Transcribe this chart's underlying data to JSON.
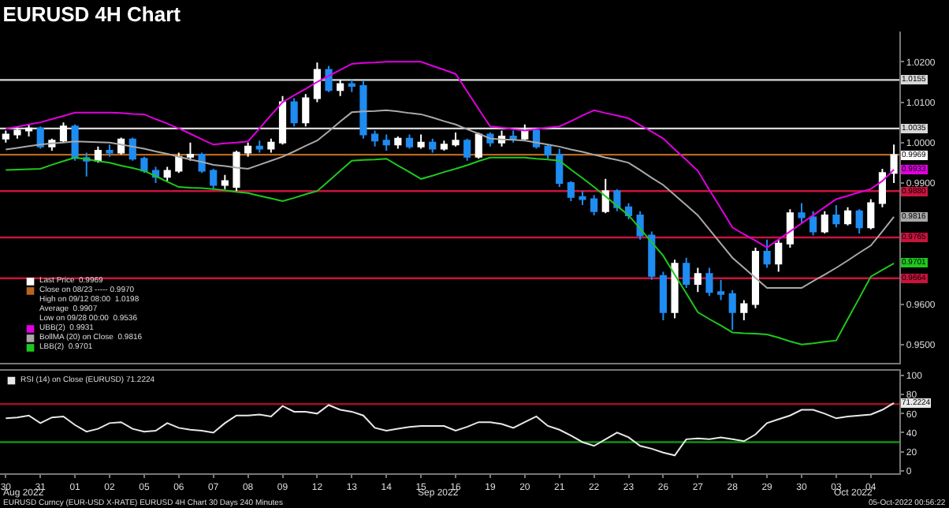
{
  "chart_data": [
    {
      "type": "candlestick",
      "title": "EURUSD 4H Chart",
      "tick_labels": "y",
      "legend": "bottom left",
      "grid": false,
      "categories": [
        "30",
        null,
        null,
        "31",
        null,
        null,
        "01",
        null,
        null,
        "02",
        null,
        null,
        "05",
        null,
        null,
        "06",
        null,
        null,
        "07",
        null,
        null,
        "08",
        null,
        null,
        "09",
        null,
        null,
        "12",
        null,
        null,
        "13",
        null,
        null,
        "14",
        null,
        null,
        "15",
        null,
        null,
        "16",
        null,
        null,
        "19",
        null,
        null,
        "20",
        null,
        null,
        "21",
        null,
        null,
        "22",
        null,
        null,
        "23",
        null,
        null,
        "26",
        null,
        null,
        "27",
        null,
        null,
        "28",
        null,
        null,
        "29",
        null,
        null,
        "30",
        null,
        null,
        "03",
        null,
        null,
        "04",
        null,
        null
      ],
      "colors": [
        "#ffffff",
        "#ffffff",
        "#ffffff",
        "#1e8cf0",
        "#ffffff",
        "#ffffff",
        "#1e8cf0",
        "#1e8cf0",
        "#ffffff",
        "#1e8cf0",
        "#ffffff",
        "#1e8cf0",
        "#1e8cf0",
        "#1e8cf0",
        "#ffffff",
        "#ffffff",
        "#ffffff",
        "#1e8cf0",
        "#1e8cf0",
        "#ffffff",
        "#ffffff",
        "#ffffff",
        "#1e8cf0",
        "#ffffff",
        "#ffffff",
        "#1e8cf0",
        "#ffffff",
        "#ffffff",
        "#1e8cf0",
        "#ffffff",
        "#1e8cf0",
        "#1e8cf0",
        "#1e8cf0",
        "#1e8cf0",
        "#ffffff",
        "#1e8cf0",
        "#ffffff",
        "#1e8cf0",
        "#ffffff",
        "#ffffff",
        "#1e8cf0",
        "#ffffff",
        "#1e8cf0",
        "#ffffff",
        "#1e8cf0",
        "#ffffff",
        "#1e8cf0",
        "#1e8cf0",
        "#1e8cf0",
        "#1e8cf0",
        "#1e8cf0",
        "#1e8cf0",
        "#ffffff",
        "#1e8cf0",
        "#1e8cf0",
        "#1e8cf0",
        "#1e8cf0",
        "#1e8cf0",
        "#ffffff",
        "#1e8cf0",
        "#ffffff",
        "#1e8cf0",
        "#1e8cf0",
        "#1e8cf0",
        "#ffffff",
        "#ffffff",
        "#1e8cf0",
        "#ffffff",
        "#ffffff",
        "#1e8cf0",
        "#1e8cf0",
        "#ffffff",
        "#1e8cf0",
        "#ffffff",
        "#1e8cf0",
        "#ffffff",
        "#ffffff",
        "#ffffff"
      ],
      "ohlc": [
        [
          1.001,
          1.003,
          1.0,
          1.002
        ],
        [
          1.002,
          1.004,
          1.001,
          1.003
        ],
        [
          1.003,
          1.0045,
          1.0015,
          1.0035
        ],
        [
          1.0035,
          1.004,
          0.9985,
          0.999
        ],
        [
          0.999,
          1.001,
          0.998,
          1.0005
        ],
        [
          1.0005,
          1.005,
          1.0,
          1.004
        ],
        [
          1.004,
          1.0045,
          0.9955,
          0.9962
        ],
        [
          0.9962,
          0.9975,
          0.9916,
          0.9955
        ],
        [
          0.9955,
          0.999,
          0.995,
          0.998
        ],
        [
          0.998,
          0.9995,
          0.9965,
          0.9975
        ],
        [
          0.9975,
          1.0012,
          0.997,
          1.0008
        ],
        [
          1.0008,
          1.0012,
          0.9955,
          0.996
        ],
        [
          0.996,
          0.9965,
          0.9925,
          0.993
        ],
        [
          0.993,
          0.994,
          0.99,
          0.9915
        ],
        [
          0.9915,
          0.994,
          0.9905,
          0.993
        ],
        [
          0.993,
          0.9975,
          0.9925,
          0.9965
        ],
        [
          0.9965,
          1.0,
          0.9955,
          0.997
        ],
        [
          0.997,
          0.9975,
          0.9925,
          0.993
        ],
        [
          0.993,
          0.9935,
          0.9885,
          0.9895
        ],
        [
          0.9895,
          0.992,
          0.9885,
          0.9905
        ],
        [
          0.989,
          0.998,
          0.988,
          0.9975
        ],
        [
          0.9975,
          1.0,
          0.9965,
          0.999
        ],
        [
          0.999,
          1.0005,
          0.9975,
          0.9985
        ],
        [
          0.9985,
          1.001,
          0.9975,
          1.0
        ],
        [
          1.0,
          1.0115,
          0.9995,
          1.01
        ],
        [
          1.01,
          1.011,
          1.004,
          1.005
        ],
        [
          1.005,
          1.012,
          1.004,
          1.011
        ],
        [
          1.011,
          1.0198,
          1.01,
          1.018
        ],
        [
          1.018,
          1.019,
          1.0125,
          1.013
        ],
        [
          1.013,
          1.0155,
          1.0115,
          1.0145
        ],
        [
          1.0145,
          1.0155,
          1.0125,
          1.014
        ],
        [
          1.014,
          1.0153,
          1.001,
          1.002
        ],
        [
          1.002,
          1.003,
          0.999,
          1.0005
        ],
        [
          1.0005,
          1.002,
          0.998,
          0.9995
        ],
        [
          0.9995,
          1.0015,
          0.9985,
          1.001
        ],
        [
          1.001,
          1.002,
          0.9985,
          0.999
        ],
        [
          0.999,
          1.002,
          0.9985,
          1.0
        ],
        [
          1.0,
          1.001,
          0.9975,
          0.9985
        ],
        [
          0.9985,
          1.0005,
          0.998,
          0.9995
        ],
        [
          0.9995,
          1.0025,
          0.999,
          1.0005
        ],
        [
          1.0005,
          1.001,
          0.9955,
          0.9965
        ],
        [
          0.9965,
          1.0025,
          0.996,
          1.002
        ],
        [
          1.002,
          1.0025,
          0.999,
          1.0
        ],
        [
          1.0,
          1.003,
          0.999,
          1.0015
        ],
        [
          1.0015,
          1.003,
          1.0,
          1.001
        ],
        [
          1.001,
          1.0045,
          1.0005,
          1.003
        ],
        [
          1.003,
          1.0035,
          0.9985,
          0.999
        ],
        [
          0.999,
          0.9995,
          0.996,
          0.997
        ],
        [
          0.997,
          0.9985,
          0.989,
          0.99
        ],
        [
          0.99,
          0.9905,
          0.9855,
          0.9865
        ],
        [
          0.9865,
          0.988,
          0.9845,
          0.986
        ],
        [
          0.986,
          0.987,
          0.982,
          0.983
        ],
        [
          0.983,
          0.991,
          0.9825,
          0.988
        ],
        [
          0.988,
          0.9885,
          0.983,
          0.984
        ],
        [
          0.984,
          0.985,
          0.981,
          0.982
        ],
        [
          0.982,
          0.983,
          0.976,
          0.977
        ],
        [
          0.977,
          0.978,
          0.966,
          0.967
        ],
        [
          0.967,
          0.968,
          0.956,
          0.958
        ],
        [
          0.958,
          0.971,
          0.9565,
          0.97
        ],
        [
          0.97,
          0.9715,
          0.964,
          0.965
        ],
        [
          0.965,
          0.969,
          0.963,
          0.9675
        ],
        [
          0.9675,
          0.969,
          0.962,
          0.963
        ],
        [
          0.963,
          0.966,
          0.961,
          0.9625
        ],
        [
          0.9625,
          0.9635,
          0.9536,
          0.958
        ],
        [
          0.958,
          0.961,
          0.956,
          0.96
        ],
        [
          0.96,
          0.974,
          0.959,
          0.973
        ],
        [
          0.973,
          0.976,
          0.969,
          0.97
        ],
        [
          0.97,
          0.976,
          0.968,
          0.975
        ],
        [
          0.975,
          0.9835,
          0.974,
          0.9825
        ],
        [
          0.9825,
          0.985,
          0.98,
          0.9815
        ],
        [
          0.9815,
          0.983,
          0.977,
          0.978
        ],
        [
          0.978,
          0.983,
          0.9775,
          0.982
        ],
        [
          0.982,
          0.9845,
          0.979,
          0.98
        ],
        [
          0.98,
          0.984,
          0.9795,
          0.983
        ],
        [
          0.983,
          0.9835,
          0.9775,
          0.979
        ],
        [
          0.979,
          0.986,
          0.9785,
          0.985
        ],
        [
          0.985,
          0.9935,
          0.984,
          0.9925
        ],
        [
          0.9925,
          0.9995,
          0.99,
          0.9969
        ]
      ],
      "series": [
        {
          "name": "UBB(2)  0.9931",
          "type": "line",
          "color": "#e000e0",
          "values": [
            1.0034,
            1.0039,
            1.0045,
            1.005,
            1.0058,
            1.0066,
            1.0074,
            1.0074,
            1.0074,
            1.0074,
            1.0073,
            1.0071,
            1.007,
            1.0058,
            1.0047,
            1.0035,
            1.0022,
            1.0008,
            0.9995,
            0.9998,
            1.0,
            1.0003,
            1.0035,
            1.0068,
            1.01,
            1.0117,
            1.0133,
            1.015,
            1.0165,
            1.018,
            1.0195,
            1.0197,
            1.0198,
            1.02,
            1.02,
            1.02,
            1.02,
            1.019,
            1.018,
            1.017,
            1.0127,
            1.0083,
            1.004,
            1.0037,
            1.0033,
            1.003,
            1.0033,
            1.0037,
            1.004,
            1.0053,
            1.0067,
            1.008,
            1.0073,
            1.0067,
            1.006,
            1.0043,
            1.0027,
            1.001,
            0.9983,
            0.9957,
            0.993,
            0.9883,
            0.9837,
            0.979,
            0.9773,
            0.9757,
            0.974,
            0.976,
            0.978,
            0.98,
            0.982,
            0.984,
            0.986,
            0.9868,
            0.9877,
            0.9885,
            0.9905,
            0.9933
          ],
          "value_labels": [
            null,
            null,
            null,
            null,
            null,
            null,
            null,
            null,
            null,
            null,
            null,
            null,
            null,
            null,
            null,
            null,
            null,
            null,
            null,
            null,
            null,
            null,
            null,
            null,
            null,
            null,
            null,
            null,
            null,
            null,
            null,
            null,
            null,
            null,
            null,
            null,
            null,
            null,
            null,
            null,
            null,
            null,
            null,
            null,
            null,
            null,
            null,
            null,
            null,
            null,
            null,
            null,
            null,
            null,
            null,
            null,
            null,
            null,
            null,
            null,
            null,
            null,
            null,
            null,
            null,
            null,
            null,
            null,
            null,
            null,
            null,
            null,
            null,
            null,
            null,
            null,
            null,
            "0.9933"
          ]
        },
        {
          "name": "BollMA (20) on Close  0.9816",
          "type": "line",
          "color": "#a8a8a8",
          "values": [
            0.9983,
            0.9987,
            0.9991,
            0.9995,
            0.9998,
            1.0,
            1.0003,
            1.0002,
            1.0001,
            1.0,
            0.9995,
            0.999,
            0.9985,
            0.9978,
            0.9972,
            0.9965,
            0.9958,
            0.9952,
            0.9945,
            0.9942,
            0.9938,
            0.9935,
            0.9945,
            0.9955,
            0.9965,
            0.9978,
            0.9992,
            1.0005,
            1.0028,
            1.0052,
            1.0075,
            1.0077,
            1.0078,
            1.008,
            1.0077,
            1.0073,
            1.007,
            1.0062,
            1.0053,
            1.0045,
            1.0033,
            1.0022,
            1.001,
            1.0008,
            1.0007,
            1.0005,
            1.0,
            0.9995,
            0.999,
            0.9983,
            0.9977,
            0.997,
            0.9963,
            0.9957,
            0.995,
            0.9932,
            0.9913,
            0.9895,
            0.987,
            0.9845,
            0.982,
            0.9785,
            0.975,
            0.9715,
            0.969,
            0.9665,
            0.964,
            0.964,
            0.964,
            0.964,
            0.9657,
            0.9673,
            0.969,
            0.9708,
            0.9727,
            0.9745,
            0.978,
            0.9816
          ],
          "value_labels": [
            null,
            null,
            null,
            null,
            null,
            null,
            null,
            null,
            null,
            null,
            null,
            null,
            null,
            null,
            null,
            null,
            null,
            null,
            null,
            null,
            null,
            null,
            null,
            null,
            null,
            null,
            null,
            null,
            null,
            null,
            null,
            null,
            null,
            null,
            null,
            null,
            null,
            null,
            null,
            null,
            null,
            null,
            null,
            null,
            null,
            null,
            null,
            null,
            null,
            null,
            null,
            null,
            null,
            null,
            null,
            null,
            null,
            null,
            null,
            null,
            null,
            null,
            null,
            null,
            null,
            null,
            null,
            null,
            null,
            null,
            null,
            null,
            null,
            null,
            null,
            null,
            null,
            "0.9816"
          ]
        },
        {
          "name": "LBB(2)  0.9701",
          "type": "line",
          "color": "#1ec81e",
          "values": [
            0.9932,
            0.9933,
            0.9934,
            0.9935,
            0.9945,
            0.9954,
            0.9963,
            0.9959,
            0.9954,
            0.995,
            0.9943,
            0.9937,
            0.993,
            0.9917,
            0.9903,
            0.989,
            0.9888,
            0.9887,
            0.9885,
            0.9882,
            0.9878,
            0.9875,
            0.9868,
            0.9862,
            0.9855,
            0.9863,
            0.9872,
            0.988,
            0.9905,
            0.993,
            0.9955,
            0.9957,
            0.9958,
            0.996,
            0.9943,
            0.9927,
            0.991,
            0.9918,
            0.9927,
            0.9935,
            0.9944,
            0.9954,
            0.9963,
            0.9963,
            0.9963,
            0.9963,
            0.996,
            0.9958,
            0.9955,
            0.9933,
            0.9912,
            0.989,
            0.9867,
            0.9843,
            0.982,
            0.9787,
            0.9753,
            0.972,
            0.9673,
            0.9627,
            0.958,
            0.9563,
            0.9547,
            0.953,
            0.9528,
            0.9527,
            0.9525,
            0.9517,
            0.9508,
            0.95,
            0.9503,
            0.9507,
            0.951,
            0.9563,
            0.9615,
            0.9668,
            0.9685,
            0.9701
          ],
          "value_labels": [
            null,
            null,
            null,
            null,
            null,
            null,
            null,
            null,
            null,
            null,
            null,
            null,
            null,
            null,
            null,
            null,
            null,
            null,
            null,
            null,
            null,
            null,
            null,
            null,
            null,
            null,
            null,
            null,
            null,
            null,
            null,
            null,
            null,
            null,
            null,
            null,
            null,
            null,
            null,
            null,
            null,
            null,
            null,
            null,
            null,
            null,
            null,
            null,
            null,
            null,
            null,
            null,
            null,
            null,
            null,
            null,
            null,
            null,
            null,
            null,
            null,
            null,
            null,
            null,
            null,
            null,
            null,
            null,
            null,
            null,
            null,
            null,
            null,
            null,
            null,
            null,
            null,
            "0.9701"
          ]
        }
      ],
      "ref_lines": [
        {
          "axis": "y",
          "value": 1.0155,
          "label": "1.0155",
          "color": "#d8d8d8"
        },
        {
          "axis": "y",
          "value": 1.0035,
          "label": "1.0035",
          "color": "#d8d8d8"
        },
        {
          "axis": "y",
          "value": 0.997,
          "label": "Close on 08/23 ----- 0.9970",
          "color": "#b8661e"
        },
        {
          "axis": "y",
          "value": 0.988,
          "label": "0.9880",
          "color": "#c8143c"
        },
        {
          "axis": "y",
          "value": 0.9765,
          "label": "0.9765",
          "color": "#c8143c"
        },
        {
          "axis": "y",
          "value": 0.9664,
          "label": "0.9664",
          "color": "#c8143c"
        }
      ],
      "annotations": [
        "Last Price  0.9969",
        "High on 09/12 08:00  1.0198",
        "Average  0.9907",
        "Low on 09/28 00:00  0.9536",
        "0.9969"
      ],
      "ylim": [
        0.9455,
        1.0275
      ],
      "yticks": [
        {
          "value": 0.95,
          "label": "0.9500"
        },
        {
          "value": 0.96,
          "label": "0.9600"
        },
        {
          "value": 0.99,
          "label": "0.9900"
        },
        {
          "value": 1.0,
          "label": "1.0000"
        },
        {
          "value": 1.01,
          "label": "1.0100"
        },
        {
          "value": 1.02,
          "label": "1.0200"
        }
      ]
    },
    {
      "type": "line",
      "legend": "top left",
      "grid": false,
      "categories": [
        "30",
        null,
        null,
        "31",
        null,
        null,
        "01",
        null,
        null,
        "02",
        null,
        null,
        "05",
        null,
        null,
        "06",
        null,
        null,
        "07",
        null,
        null,
        "08",
        null,
        null,
        "09",
        null,
        null,
        "12",
        null,
        null,
        "13",
        null,
        null,
        "14",
        null,
        null,
        "15",
        null,
        null,
        "16",
        null,
        null,
        "19",
        null,
        null,
        "20",
        null,
        null,
        "21",
        null,
        null,
        "22",
        null,
        null,
        "23",
        null,
        null,
        "26",
        null,
        null,
        "27",
        null,
        null,
        "28",
        null,
        null,
        "29",
        null,
        null,
        "30",
        null,
        null,
        "03",
        null,
        null,
        "04",
        null,
        null
      ],
      "series": [
        {
          "name": "RSI (14) on Close (EURUSD) 71.2224",
          "color": "#e8e8e8",
          "values": [
            55,
            56,
            58,
            50,
            56,
            57,
            48,
            41,
            44,
            50,
            51,
            44,
            41,
            42,
            50,
            45,
            43,
            42,
            40,
            50,
            58,
            58,
            59,
            57,
            68,
            62,
            62,
            60,
            69,
            64,
            62,
            58,
            45,
            42,
            44,
            46,
            47,
            47,
            47,
            42,
            46,
            51,
            51,
            49,
            45,
            51,
            57,
            47,
            43,
            37,
            30,
            26,
            33,
            40,
            35,
            26,
            23,
            19,
            16,
            33,
            34,
            33,
            35,
            33,
            31,
            38,
            50,
            54,
            58,
            64,
            64,
            60,
            55,
            57,
            58,
            59,
            64,
            71.2224
          ],
          "value_labels": [
            null,
            null,
            null,
            null,
            null,
            null,
            null,
            null,
            null,
            null,
            null,
            null,
            null,
            null,
            null,
            null,
            null,
            null,
            null,
            null,
            null,
            null,
            null,
            null,
            null,
            null,
            null,
            null,
            null,
            null,
            null,
            null,
            null,
            null,
            null,
            null,
            null,
            null,
            null,
            null,
            null,
            null,
            null,
            null,
            null,
            null,
            null,
            null,
            null,
            null,
            null,
            null,
            null,
            null,
            null,
            null,
            null,
            null,
            null,
            null,
            null,
            null,
            null,
            null,
            null,
            null,
            null,
            null,
            null,
            null,
            null,
            null,
            null,
            null,
            null,
            null,
            null,
            "71.2224"
          ]
        }
      ],
      "ref_lines": [
        {
          "axis": "y",
          "value": 70,
          "color": "#a01020"
        },
        {
          "axis": "y",
          "value": 30,
          "color": "#109010"
        }
      ],
      "annotations": [
        "Aug 2022",
        "Sep 2022",
        "Oct 2022",
        "EURUSD Curncy (EUR-USD X-RATE) EURUSD 4H Chart 30 Days 240 Minutes",
        "05-Oct-2022 00:56:22"
      ],
      "ylim": [
        -3,
        105
      ],
      "yticks": [
        0,
        20,
        40,
        60,
        80,
        100
      ]
    }
  ]
}
